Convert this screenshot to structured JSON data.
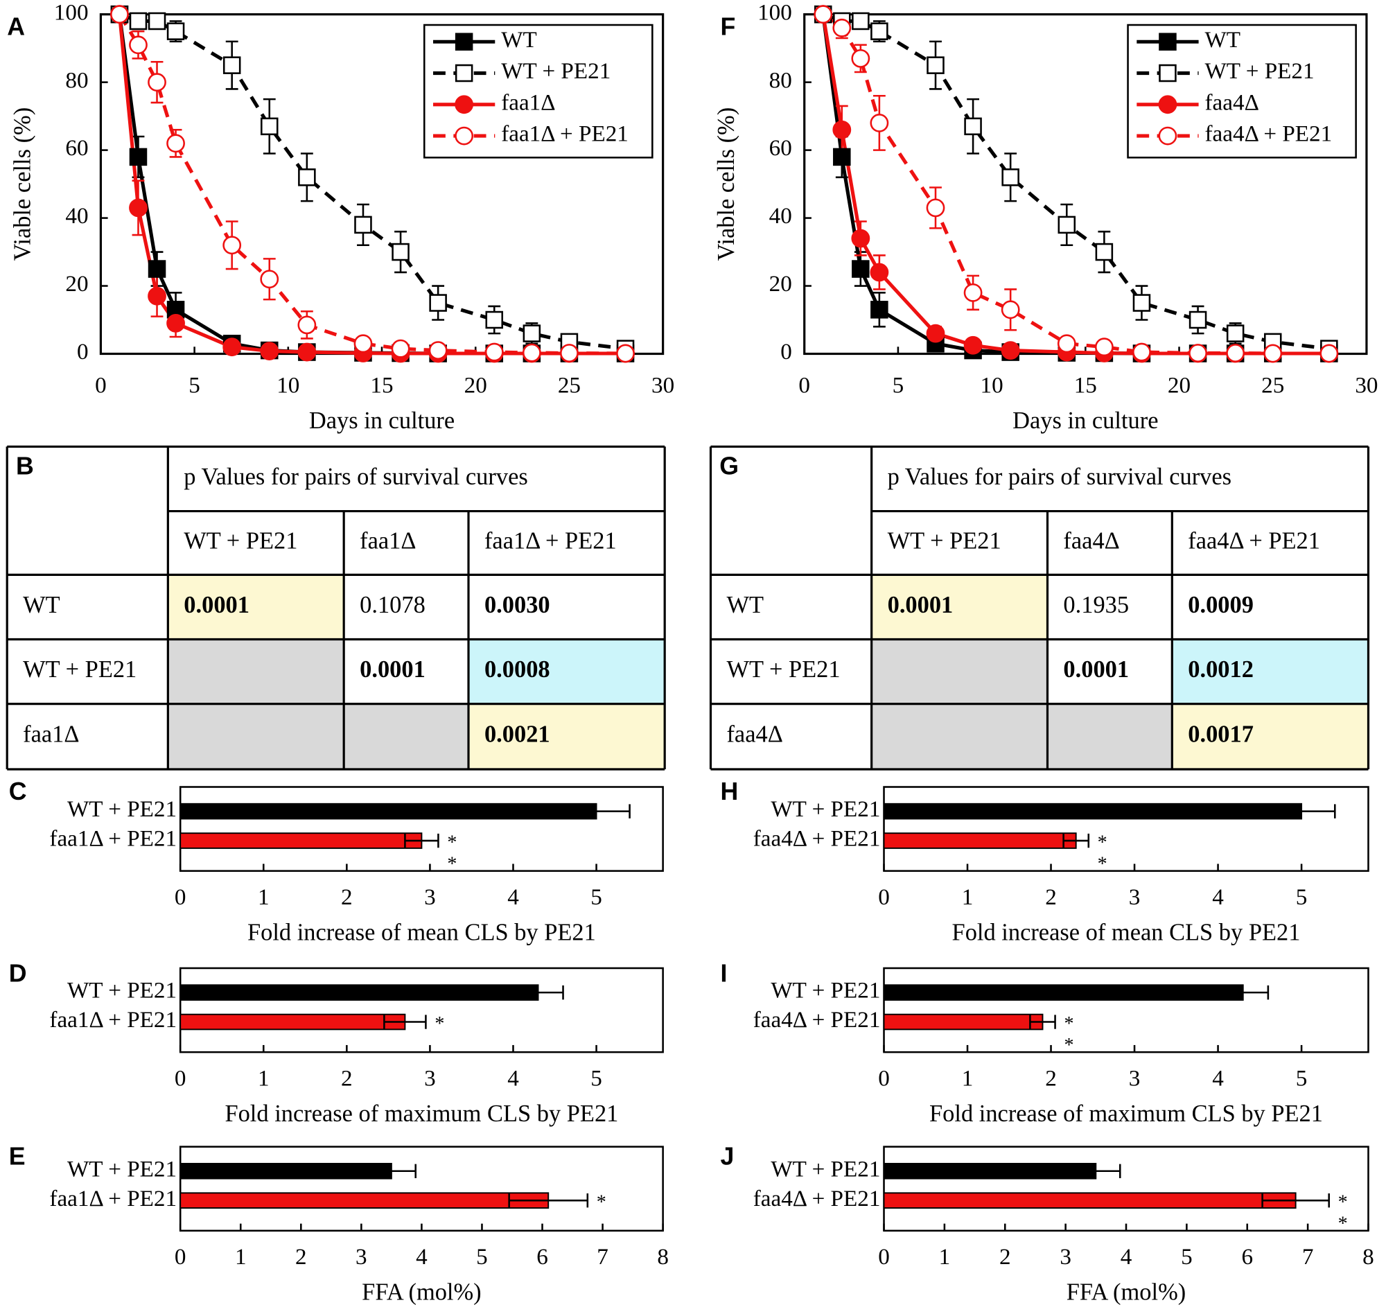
{
  "chart_data": [
    {
      "type": "line",
      "panel": "A",
      "xlabel": "Days in culture",
      "ylabel": "Viable cells (%)",
      "xlim": [
        0,
        30
      ],
      "xticks": [
        0,
        5,
        10,
        15,
        20,
        25,
        30
      ],
      "ylim": [
        0,
        100
      ],
      "yticks": [
        0,
        20,
        40,
        60,
        80,
        100
      ],
      "legend": "upper right",
      "x": [
        1,
        2,
        3,
        4,
        7,
        9,
        11,
        14,
        16,
        18,
        21,
        23,
        25,
        28
      ],
      "series": [
        {
          "name": "WT",
          "color": "#000000",
          "marker": "square",
          "filled": true,
          "dashed": false,
          "values": [
            100,
            58,
            25,
            13,
            3,
            1,
            0.5,
            0.3,
            0.2,
            0.1,
            0.1,
            0.1,
            0.1,
            0.1
          ],
          "errors": [
            0.5,
            6,
            5,
            5,
            1,
            0.5,
            0.3,
            0.2,
            0.1,
            0.1,
            0.1,
            0.1,
            0.1,
            0.1
          ]
        },
        {
          "name": "WT + PE21",
          "color": "#000000",
          "marker": "square",
          "filled": false,
          "dashed": true,
          "values": [
            100,
            98,
            98,
            95,
            85,
            67,
            52,
            38,
            30,
            15,
            10,
            6,
            3.5,
            1.5
          ],
          "errors": [
            0.5,
            1,
            1,
            3,
            7,
            8,
            7,
            6,
            6,
            5,
            4,
            3,
            1,
            1
          ]
        },
        {
          "name": "faa1Δ",
          "color": "#ee1111",
          "marker": "circle",
          "filled": true,
          "dashed": false,
          "values": [
            100,
            43,
            17,
            9,
            2,
            0.8,
            0.5,
            0.2,
            0.1,
            0.1,
            0.1,
            0.1,
            0.1,
            0.1
          ],
          "errors": [
            0.5,
            8,
            6,
            4,
            1,
            0.5,
            0.3,
            0.2,
            0.1,
            0.1,
            0.1,
            0.1,
            0.1,
            0.1
          ]
        },
        {
          "name": "faa1Δ + PE21",
          "color": "#ee1111",
          "marker": "circle",
          "filled": false,
          "dashed": true,
          "values": [
            100,
            91,
            80,
            62,
            32,
            22,
            8.5,
            3,
            1.5,
            1,
            0.5,
            0.3,
            0.2,
            0.1
          ],
          "errors": [
            0.5,
            4,
            6,
            4,
            7,
            6,
            4,
            1,
            1,
            0.5,
            0.3,
            0.2,
            0.1,
            0.1
          ]
        }
      ]
    },
    {
      "type": "hbar",
      "panel": "C",
      "xlabel": "Fold increase of mean CLS by PE21",
      "xlim": [
        0,
        5.8
      ],
      "xticks": [
        0,
        1,
        2,
        3,
        4,
        5
      ],
      "categories": [
        "WT + PE21",
        "faa1Δ + PE21"
      ],
      "values": [
        5.0,
        2.9
      ],
      "errors": [
        0.4,
        0.2
      ],
      "colors": [
        "#000000",
        "#ee1111"
      ],
      "annotations": [
        null,
        "**"
      ]
    },
    {
      "type": "hbar",
      "panel": "D",
      "xlabel": "Fold increase of maximum CLS by PE21",
      "xlim": [
        0,
        5.8
      ],
      "xticks": [
        0,
        1,
        2,
        3,
        4,
        5
      ],
      "categories": [
        "WT + PE21",
        "faa1Δ + PE21"
      ],
      "values": [
        4.3,
        2.7
      ],
      "errors": [
        0.3,
        0.25
      ],
      "colors": [
        "#000000",
        "#ee1111"
      ],
      "annotations": [
        null,
        "*"
      ]
    },
    {
      "type": "hbar",
      "panel": "E",
      "xlabel": "FFA (mol%)",
      "xlim": [
        0,
        8
      ],
      "xticks": [
        0,
        1,
        2,
        3,
        4,
        5,
        6,
        7,
        8
      ],
      "categories": [
        "WT + PE21",
        "faa1Δ + PE21"
      ],
      "values": [
        3.5,
        6.1
      ],
      "errors": [
        0.4,
        0.65
      ],
      "colors": [
        "#000000",
        "#ee1111"
      ],
      "annotations": [
        null,
        "*"
      ]
    },
    {
      "type": "line",
      "panel": "F",
      "xlabel": "Days in culture",
      "ylabel": "Viable cells (%)",
      "xlim": [
        0,
        30
      ],
      "xticks": [
        0,
        5,
        10,
        15,
        20,
        25,
        30
      ],
      "ylim": [
        0,
        100
      ],
      "yticks": [
        0,
        20,
        40,
        60,
        80,
        100
      ],
      "legend": "upper right",
      "x": [
        1,
        2,
        3,
        4,
        7,
        9,
        11,
        14,
        16,
        18,
        21,
        23,
        25,
        28
      ],
      "series": [
        {
          "name": "WT",
          "color": "#000000",
          "marker": "square",
          "filled": true,
          "dashed": false,
          "values": [
            100,
            58,
            25,
            13,
            3,
            1,
            0.5,
            0.3,
            0.2,
            0.1,
            0.1,
            0.1,
            0.1,
            0.1
          ],
          "errors": [
            0.5,
            6,
            5,
            5,
            1,
            0.5,
            0.3,
            0.2,
            0.1,
            0.1,
            0.1,
            0.1,
            0.1,
            0.1
          ]
        },
        {
          "name": "WT + PE21",
          "color": "#000000",
          "marker": "square",
          "filled": false,
          "dashed": true,
          "values": [
            100,
            98,
            98,
            95,
            85,
            67,
            52,
            38,
            30,
            15,
            10,
            6,
            3.5,
            1.5
          ],
          "errors": [
            0.5,
            1,
            1,
            3,
            7,
            8,
            7,
            6,
            6,
            5,
            4,
            3,
            1,
            1
          ]
        },
        {
          "name": "faa4Δ",
          "color": "#ee1111",
          "marker": "circle",
          "filled": true,
          "dashed": false,
          "values": [
            100,
            66,
            34,
            24,
            6,
            2.5,
            1,
            0.5,
            0.2,
            0.1,
            0.1,
            0.1,
            0.1,
            0.1
          ],
          "errors": [
            0.5,
            7,
            5,
            5,
            2,
            1,
            0.5,
            0.3,
            0.2,
            0.1,
            0.1,
            0.1,
            0.1,
            0.1
          ]
        },
        {
          "name": "faa4Δ + PE21",
          "color": "#ee1111",
          "marker": "circle",
          "filled": false,
          "dashed": true,
          "values": [
            100,
            96,
            87,
            68,
            43,
            18,
            13,
            3,
            2,
            0.5,
            0.2,
            0.2,
            0.1,
            0.1
          ],
          "errors": [
            0.5,
            3,
            4,
            8,
            6,
            5,
            6,
            1,
            1,
            0.3,
            0.2,
            0.2,
            0.1,
            0.1
          ]
        }
      ]
    },
    {
      "type": "hbar",
      "panel": "H",
      "xlabel": "Fold increase of mean CLS by PE21",
      "xlim": [
        0,
        5.8
      ],
      "xticks": [
        0,
        1,
        2,
        3,
        4,
        5
      ],
      "categories": [
        "WT + PE21",
        "faa4Δ + PE21"
      ],
      "values": [
        5.0,
        2.3
      ],
      "errors": [
        0.4,
        0.15
      ],
      "colors": [
        "#000000",
        "#ee1111"
      ],
      "annotations": [
        null,
        "**"
      ]
    },
    {
      "type": "hbar",
      "panel": "I",
      "xlabel": "Fold increase of maximum CLS by PE21",
      "xlim": [
        0,
        5.8
      ],
      "xticks": [
        0,
        1,
        2,
        3,
        4,
        5
      ],
      "categories": [
        "WT + PE21",
        "faa4Δ + PE21"
      ],
      "values": [
        4.3,
        1.9
      ],
      "errors": [
        0.3,
        0.15
      ],
      "colors": [
        "#000000",
        "#ee1111"
      ],
      "annotations": [
        null,
        "**"
      ]
    },
    {
      "type": "hbar",
      "panel": "J",
      "xlabel": "FFA (mol%)",
      "xlim": [
        0,
        8
      ],
      "xticks": [
        0,
        1,
        2,
        3,
        4,
        5,
        6,
        7,
        8
      ],
      "categories": [
        "WT + PE21",
        "faa4Δ + PE21"
      ],
      "values": [
        3.5,
        6.8
      ],
      "errors": [
        0.4,
        0.55
      ],
      "colors": [
        "#000000",
        "#ee1111"
      ],
      "annotations": [
        null,
        "**"
      ]
    }
  ],
  "tables": [
    {
      "panel": "B",
      "title": "p Values for pairs of survival curves",
      "columns": [
        "WT + PE21",
        "faa1Δ",
        "faa1Δ + PE21"
      ],
      "rows": [
        [
          "WT",
          "0.0001",
          "0.1078",
          "0.0030"
        ],
        [
          "WT + PE21",
          null,
          "0.0001",
          "0.0008"
        ],
        [
          "faa1Δ",
          null,
          null,
          "0.0021"
        ]
      ],
      "cell_fill": [
        [
          "#fdf8d2",
          "#ffffff",
          "#ffffff"
        ],
        [
          "#d9d9d9",
          "#ffffff",
          "#ccf5fa"
        ],
        [
          "#d9d9d9",
          "#d9d9d9",
          "#fdf8d2"
        ]
      ],
      "text_color": [
        [
          "#ee1111",
          "#000000",
          "#ee1111"
        ],
        [
          null,
          "#ee1111",
          "#ee1111"
        ],
        [
          null,
          null,
          "#ee1111"
        ]
      ]
    },
    {
      "panel": "G",
      "title": "p Values for pairs of survival curves",
      "columns": [
        "WT + PE21",
        "faa4Δ",
        "faa4Δ + PE21"
      ],
      "rows": [
        [
          "WT",
          "0.0001",
          "0.1935",
          "0.0009"
        ],
        [
          "WT + PE21",
          null,
          "0.0001",
          "0.0012"
        ],
        [
          "faa4Δ",
          null,
          null,
          "0.0017"
        ]
      ],
      "cell_fill": [
        [
          "#fdf8d2",
          "#ffffff",
          "#ffffff"
        ],
        [
          "#d9d9d9",
          "#ffffff",
          "#ccf5fa"
        ],
        [
          "#d9d9d9",
          "#d9d9d9",
          "#fdf8d2"
        ]
      ],
      "text_color": [
        [
          "#ee1111",
          "#000000",
          "#ee1111"
        ],
        [
          null,
          "#ee1111",
          "#ee1111"
        ],
        [
          null,
          null,
          "#ee1111"
        ]
      ]
    }
  ]
}
